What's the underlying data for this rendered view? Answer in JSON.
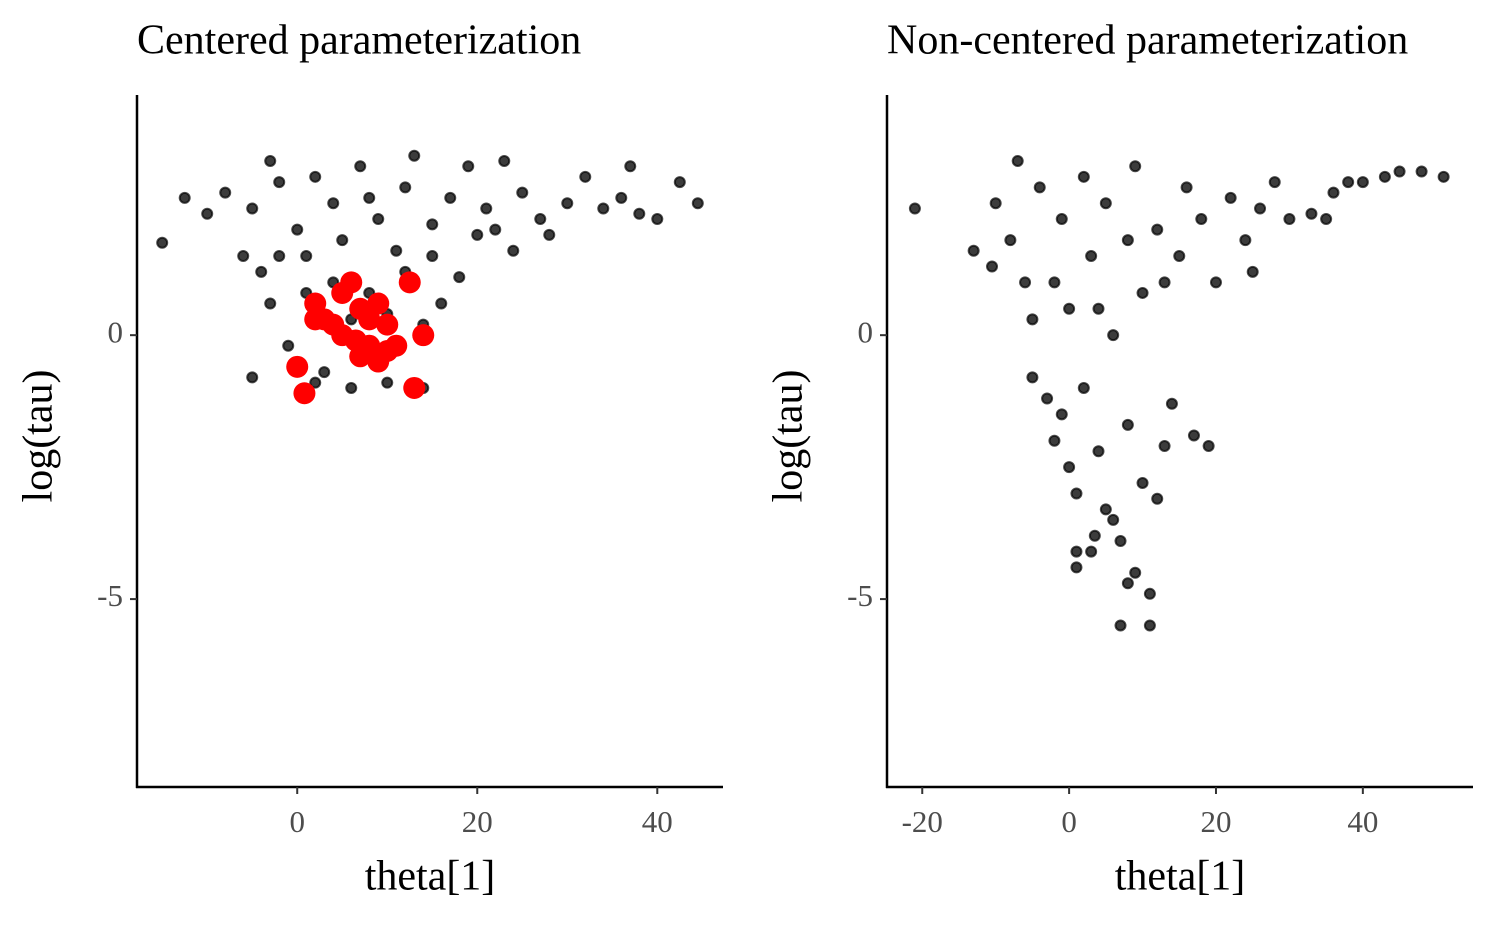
{
  "chart_data": [
    {
      "type": "scatter",
      "title": "Centered parameterization",
      "x_label": "theta[1]",
      "y_label": "log(tau)",
      "xlim": [
        -17.8,
        47.3
      ],
      "xticks": [
        0,
        20,
        40
      ],
      "ylim": [
        -8.56,
        4.55
      ],
      "yticks": [
        -5,
        0
      ],
      "series": [
        {
          "color": "#1a1a1a",
          "x": [
            -15,
            -12.5,
            -10,
            -8,
            -5,
            -3,
            -4,
            -5,
            -3,
            -2,
            0,
            1,
            2,
            3,
            4,
            5,
            6,
            7,
            8,
            9,
            10,
            11,
            12,
            13,
            14,
            15,
            16,
            17,
            18,
            19,
            20,
            21,
            23,
            24,
            25,
            27,
            28,
            30,
            32,
            34,
            36,
            37,
            38,
            40,
            42.5,
            44.5,
            -1,
            2,
            6,
            10,
            12,
            4,
            8,
            15,
            -2,
            1,
            9,
            14,
            -6,
            22
          ],
          "values": [
            1.75,
            2.6,
            2.3,
            2.7,
            2.4,
            3.3,
            1.2,
            -0.8,
            0.6,
            2.9,
            2.0,
            1.5,
            3.0,
            -0.7,
            2.5,
            1.8,
            -1.0,
            3.2,
            0.8,
            2.2,
            -0.9,
            1.6,
            2.8,
            3.4,
            -1.0,
            2.1,
            0.6,
            2.6,
            1.1,
            3.2,
            1.9,
            2.4,
            3.3,
            1.6,
            2.7,
            2.2,
            1.9,
            2.5,
            3.0,
            2.4,
            2.6,
            3.2,
            2.3,
            2.2,
            2.9,
            2.5,
            -0.2,
            -0.9,
            0.3,
            0.4,
            1.2,
            1.0,
            2.6,
            1.5,
            1.5,
            0.8,
            -0.4,
            0.2,
            1.5,
            2.0
          ]
        },
        {
          "color": "#ff0000",
          "x": [
            2,
            3,
            5,
            6,
            7,
            8,
            9,
            10,
            12.5,
            14,
            8,
            9,
            10,
            5,
            6.5,
            0,
            0.8,
            13,
            4,
            2,
            7,
            11
          ],
          "values": [
            0.6,
            0.3,
            0.8,
            1.0,
            0.5,
            0.3,
            0.6,
            0.2,
            1.0,
            0,
            -0.2,
            -0.5,
            -0.3,
            0,
            -0.1,
            -0.6,
            -1.1,
            -1.0,
            0.2,
            0.3,
            -0.4,
            -0.2
          ]
        }
      ]
    },
    {
      "type": "scatter",
      "title": "Non-centered parameterization",
      "x_label": "theta[1]",
      "y_label": "log(tau)",
      "xlim": [
        -24.8,
        55
      ],
      "xticks": [
        -20,
        0,
        20,
        40
      ],
      "ylim": [
        -8.56,
        4.55
      ],
      "yticks": [
        -5,
        0
      ],
      "series": [
        {
          "color": "#1a1a1a",
          "x": [
            -21,
            -13,
            -10.5,
            -10,
            -7,
            -8,
            -6,
            -5,
            -5,
            -4,
            -3,
            -2,
            -1,
            -1,
            0,
            0,
            1,
            1,
            1,
            2,
            2,
            3,
            3,
            3.5,
            4,
            5,
            5,
            6,
            6,
            7,
            7,
            8,
            8,
            9,
            9,
            10,
            10,
            11,
            11,
            12,
            12,
            13,
            14,
            15,
            16,
            17,
            18,
            19,
            20,
            22,
            24,
            26,
            28,
            30,
            33,
            36,
            38,
            40,
            43,
            45,
            48,
            51,
            35,
            25,
            -2,
            4,
            8,
            13
          ],
          "values": [
            2.4,
            1.6,
            1.3,
            2.5,
            3.3,
            1.8,
            1.0,
            0.3,
            -0.8,
            2.8,
            -1.2,
            -2.0,
            2.2,
            -1.5,
            0.5,
            -2.5,
            -3.0,
            -4.1,
            -4.4,
            3.0,
            -1.0,
            1.5,
            -4.1,
            -3.8,
            -2.2,
            -3.3,
            2.5,
            0,
            -3.5,
            -5.5,
            -3.9,
            -4.7,
            -1.7,
            -4.5,
            3.2,
            -2.8,
            0.8,
            -5.5,
            -4.9,
            -3.1,
            2.0,
            -2.1,
            -1.3,
            1.5,
            2.8,
            -1.9,
            2.2,
            -2.1,
            1.0,
            2.6,
            1.8,
            2.4,
            2.9,
            2.2,
            2.3,
            2.7,
            2.9,
            2.9,
            3.0,
            3.1,
            3.1,
            3.0,
            2.2,
            1.2,
            1.0,
            0.5,
            1.8,
            1.0
          ]
        }
      ]
    }
  ]
}
